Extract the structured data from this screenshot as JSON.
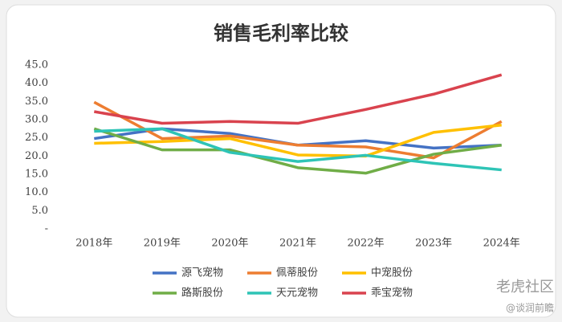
{
  "chart_data": {
    "type": "line",
    "title": "销售毛利率比较",
    "categories": [
      "2018年",
      "2019年",
      "2020年",
      "2021年",
      "2022年",
      "2023年",
      "2024年"
    ],
    "series": [
      {
        "name": "源飞宠物",
        "color": "#4472c4",
        "values": [
          24.8,
          27.5,
          26.2,
          23.0,
          24.2,
          22.2,
          23.0
        ]
      },
      {
        "name": "佩蒂股份",
        "color": "#ed7d31",
        "values": [
          34.8,
          24.8,
          25.5,
          23.0,
          22.5,
          19.5,
          29.5
        ]
      },
      {
        "name": "中宠股份",
        "color": "#ffc000",
        "values": [
          23.5,
          24.0,
          24.8,
          20.3,
          20.0,
          26.5,
          28.5
        ]
      },
      {
        "name": "路斯股份",
        "color": "#70ad47",
        "values": [
          27.5,
          21.7,
          21.7,
          16.8,
          15.3,
          20.5,
          23.0
        ]
      },
      {
        "name": "天元宠物",
        "color": "#2ec4b6",
        "values": [
          26.8,
          27.5,
          21.0,
          18.5,
          20.2,
          18.0,
          16.2
        ]
      },
      {
        "name": "乖宝宠物",
        "color": "#d9434e",
        "values": [
          32.2,
          29.0,
          29.5,
          29.0,
          32.8,
          37.0,
          42.3
        ]
      }
    ],
    "ylim": [
      0,
      45
    ],
    "yticks": [
      {
        "value": 0,
        "label": "-"
      },
      {
        "value": 5,
        "label": "5.0"
      },
      {
        "value": 10,
        "label": "10.0"
      },
      {
        "value": 15,
        "label": "15.0"
      },
      {
        "value": 20,
        "label": "20.0"
      },
      {
        "value": 25,
        "label": "25.0"
      },
      {
        "value": 30,
        "label": "30.0"
      },
      {
        "value": 35,
        "label": "35.0"
      },
      {
        "value": 40,
        "label": "40.0"
      },
      {
        "value": 45,
        "label": "45.0"
      }
    ],
    "grid": false,
    "watermark": [
      "老虎社区",
      "@谈润前瞻"
    ]
  }
}
